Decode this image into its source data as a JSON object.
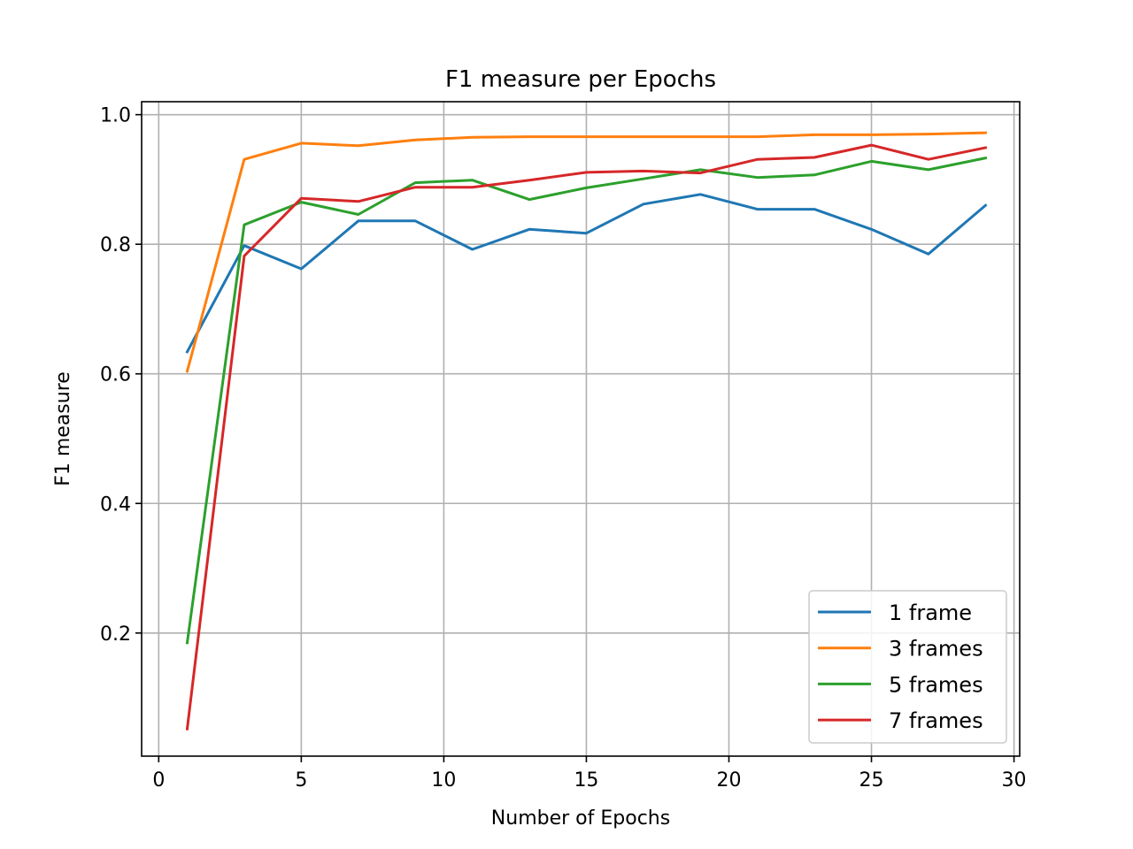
{
  "chart_data": {
    "type": "line",
    "title": "F1 measure per Epochs",
    "xlabel": "Number of Epochs",
    "ylabel": "F1 measure",
    "xlim": [
      -0.6,
      30.2
    ],
    "ylim": [
      0.01,
      1.02
    ],
    "xticks": [
      0,
      5,
      10,
      15,
      20,
      25,
      30
    ],
    "yticks": [
      0.2,
      0.4,
      0.6,
      0.8,
      1.0
    ],
    "ytick_labels": [
      "0.2",
      "0.4",
      "0.6",
      "0.8",
      "1.0"
    ],
    "grid": true,
    "legend_position": "lower-right",
    "x": [
      1,
      3,
      5,
      7,
      9,
      11,
      13,
      15,
      17,
      19,
      21,
      23,
      25,
      27,
      29
    ],
    "series": [
      {
        "name": "1 frame",
        "color": "#1f77b4",
        "values": [
          0.634,
          0.798,
          0.762,
          0.836,
          0.836,
          0.792,
          0.823,
          0.817,
          0.862,
          0.877,
          0.854,
          0.854,
          0.823,
          0.785,
          0.86
        ]
      },
      {
        "name": "3 frames",
        "color": "#ff7f0e",
        "values": [
          0.604,
          0.931,
          0.956,
          0.952,
          0.961,
          0.965,
          0.966,
          0.966,
          0.966,
          0.966,
          0.966,
          0.969,
          0.969,
          0.97,
          0.972
        ]
      },
      {
        "name": "5 frames",
        "color": "#2ca02c",
        "values": [
          0.185,
          0.83,
          0.865,
          0.846,
          0.895,
          0.899,
          0.869,
          0.887,
          0.901,
          0.915,
          0.903,
          0.907,
          0.928,
          0.915,
          0.933
        ]
      },
      {
        "name": "7 frames",
        "color": "#d62728",
        "values": [
          0.052,
          0.782,
          0.871,
          0.866,
          0.888,
          0.888,
          0.899,
          0.911,
          0.913,
          0.91,
          0.931,
          0.934,
          0.953,
          0.931,
          0.949
        ]
      }
    ]
  }
}
